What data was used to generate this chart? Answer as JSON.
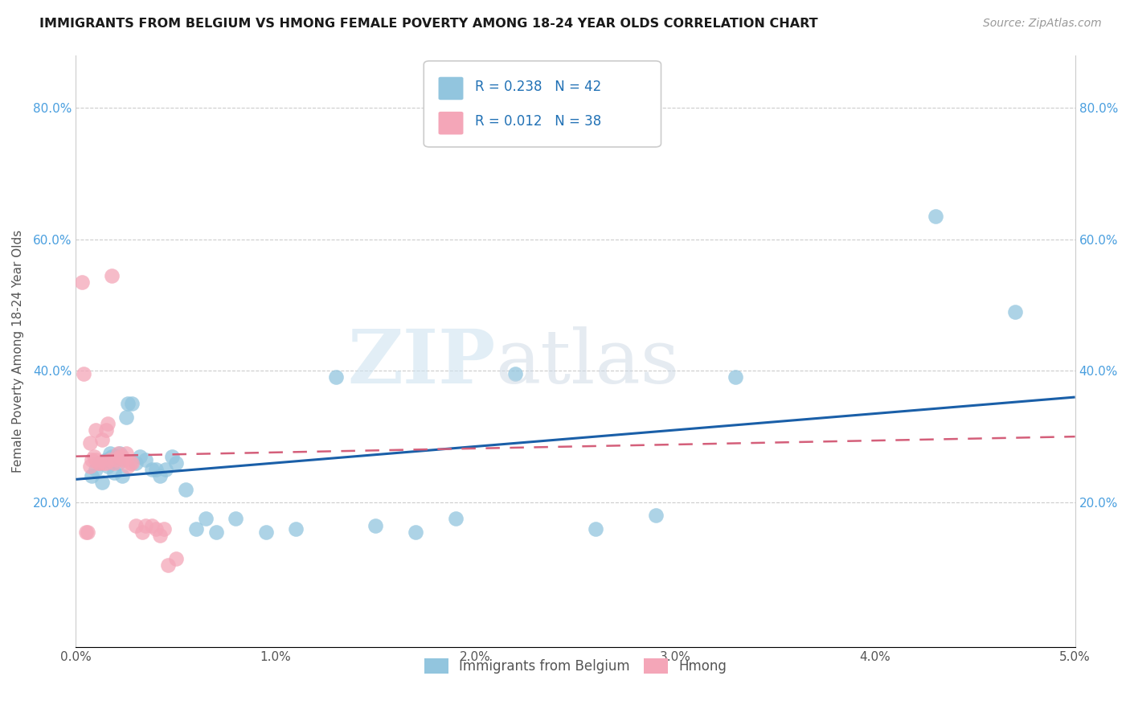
{
  "title": "IMMIGRANTS FROM BELGIUM VS HMONG FEMALE POVERTY AMONG 18-24 YEAR OLDS CORRELATION CHART",
  "source": "Source: ZipAtlas.com",
  "ylabel": "Female Poverty Among 18-24 Year Olds",
  "r1": "0.238",
  "n1": "42",
  "r2": "0.012",
  "n2": "38",
  "color_blue": "#92c5de",
  "color_pink": "#f4a6b8",
  "color_line_blue": "#1a5fa8",
  "color_line_pink": "#d45f7a",
  "background": "#ffffff",
  "grid_color": "#cccccc",
  "legend_label1": "Immigrants from Belgium",
  "legend_label2": "Hmong",
  "xlim": [
    0.0,
    0.05
  ],
  "ylim": [
    -0.02,
    0.88
  ],
  "blue_points_x": [
    0.0008,
    0.001,
    0.0012,
    0.0013,
    0.0015,
    0.0016,
    0.0017,
    0.0018,
    0.0019,
    0.002,
    0.0021,
    0.0022,
    0.0023,
    0.0025,
    0.0026,
    0.0028,
    0.003,
    0.0032,
    0.0035,
    0.0038,
    0.004,
    0.0042,
    0.0045,
    0.0048,
    0.005,
    0.0055,
    0.006,
    0.0065,
    0.007,
    0.008,
    0.0095,
    0.011,
    0.013,
    0.015,
    0.017,
    0.019,
    0.022,
    0.026,
    0.029,
    0.033,
    0.043,
    0.047
  ],
  "blue_points_y": [
    0.24,
    0.25,
    0.26,
    0.23,
    0.265,
    0.255,
    0.275,
    0.27,
    0.245,
    0.27,
    0.26,
    0.275,
    0.24,
    0.33,
    0.35,
    0.35,
    0.26,
    0.27,
    0.265,
    0.25,
    0.25,
    0.24,
    0.25,
    0.27,
    0.26,
    0.22,
    0.16,
    0.175,
    0.155,
    0.175,
    0.155,
    0.16,
    0.39,
    0.165,
    0.155,
    0.175,
    0.395,
    0.16,
    0.18,
    0.39,
    0.635,
    0.49
  ],
  "pink_points_x": [
    0.0003,
    0.0004,
    0.0005,
    0.0006,
    0.0007,
    0.0007,
    0.0008,
    0.0009,
    0.001,
    0.001,
    0.0011,
    0.0012,
    0.0013,
    0.0014,
    0.0015,
    0.0015,
    0.0016,
    0.0017,
    0.0018,
    0.0019,
    0.002,
    0.0021,
    0.0022,
    0.0023,
    0.0024,
    0.0025,
    0.0026,
    0.0027,
    0.0028,
    0.003,
    0.0033,
    0.0035,
    0.0038,
    0.004,
    0.0042,
    0.0044,
    0.0046,
    0.005
  ],
  "pink_points_y": [
    0.535,
    0.395,
    0.155,
    0.155,
    0.255,
    0.29,
    0.265,
    0.27,
    0.265,
    0.31,
    0.26,
    0.26,
    0.295,
    0.26,
    0.26,
    0.31,
    0.32,
    0.265,
    0.545,
    0.26,
    0.265,
    0.275,
    0.27,
    0.27,
    0.265,
    0.275,
    0.255,
    0.26,
    0.26,
    0.165,
    0.155,
    0.165,
    0.165,
    0.16,
    0.15,
    0.16,
    0.105,
    0.115
  ],
  "blue_line_x": [
    0.0,
    0.05
  ],
  "blue_line_y": [
    0.235,
    0.36
  ],
  "pink_line_x": [
    0.0,
    0.05
  ],
  "pink_line_y": [
    0.27,
    0.3
  ]
}
